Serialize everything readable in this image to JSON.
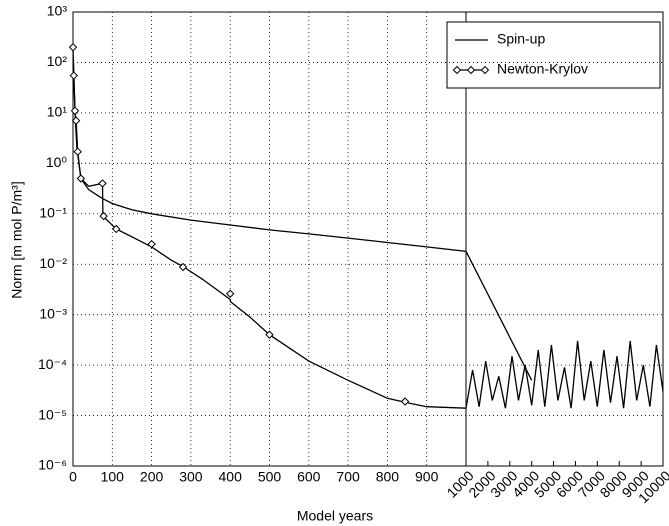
{
  "chart_data": {
    "type": "line",
    "x_label": "Model years",
    "y_label": "Norm [m mol P/m³]",
    "log_y": true,
    "grid": true,
    "legend": "upper right",
    "xlim": [
      0,
      1000
    ],
    "x2lim": [
      1000,
      10000
    ],
    "xticks": [
      0,
      100,
      200,
      300,
      400,
      500,
      600,
      700,
      800,
      900
    ],
    "x2ticks": [
      1000,
      2000,
      3000,
      4000,
      5000,
      6000,
      7000,
      8000,
      9000,
      10000
    ],
    "ylim": [
      1e-06,
      1000
    ],
    "yticks": [
      {
        "value": 1e-06,
        "label": "10⁻⁶"
      },
      {
        "value": 1e-05,
        "label": "10⁻⁵"
      },
      {
        "value": 0.0001,
        "label": "10⁻⁴"
      },
      {
        "value": 0.001,
        "label": "10⁻³"
      },
      {
        "value": 0.01,
        "label": "10⁻²"
      },
      {
        "value": 0.1,
        "label": "10⁻¹"
      },
      {
        "value": 1,
        "label": "10⁰"
      },
      {
        "value": 10,
        "label": "10¹"
      },
      {
        "value": 100,
        "label": "10²"
      },
      {
        "value": 1000,
        "label": "10³"
      }
    ],
    "series": [
      {
        "name": "Spin-up",
        "color": "#000000",
        "x": [
          1,
          5,
          10,
          20,
          40,
          75,
          100,
          150,
          200,
          300,
          400,
          500,
          600,
          700,
          800,
          900,
          1000,
          4000
        ],
        "values": [
          100,
          10,
          2,
          0.5,
          0.3,
          0.2,
          0.16,
          0.12,
          0.1,
          0.075,
          0.06,
          0.048,
          0.04,
          0.033,
          0.027,
          0.022,
          0.018,
          5e-05
        ]
      },
      {
        "name": "Newton-Krylov",
        "color": "#000000",
        "x": [
          0,
          2,
          5,
          8,
          12,
          20,
          40,
          75,
          76,
          110,
          150,
          200,
          250,
          280,
          330,
          400,
          401,
          450,
          500,
          600,
          700,
          800,
          850,
          900,
          1000,
          1300,
          1600,
          1900,
          2200,
          2500,
          2800,
          3100,
          3400,
          3700,
          4000,
          4300,
          4600,
          4900,
          5200,
          5500,
          5800,
          6100,
          6400,
          6700,
          7000,
          7300,
          7600,
          7900,
          8200,
          8500,
          8800,
          9100,
          9400,
          9700,
          10000
        ],
        "values": [
          200,
          55,
          11,
          7,
          1.7,
          0.5,
          0.35,
          0.4,
          0.09,
          0.05,
          0.035,
          0.022,
          0.012,
          0.009,
          0.005,
          0.002,
          0.0018,
          0.0009,
          0.0004,
          0.00012,
          5e-05,
          2.2e-05,
          1.8e-05,
          1.5e-05,
          1.4e-05,
          8e-05,
          1.5e-05,
          0.00012,
          2e-05,
          6e-05,
          1.4e-05,
          0.00015,
          2e-05,
          0.0001,
          1.6e-05,
          0.0002,
          1.5e-05,
          0.00025,
          2e-05,
          9e-05,
          1.4e-05,
          0.0003,
          2e-05,
          0.00012,
          1.5e-05,
          0.0002,
          1.8e-05,
          0.00015,
          1.4e-05,
          0.0003,
          2e-05,
          0.0001,
          1.5e-05,
          0.00025,
          3e-05
        ],
        "markers": {
          "x": [
            0,
            2,
            5,
            8,
            12,
            20,
            75,
            78,
            110,
            200,
            280,
            400,
            500,
            845
          ],
          "values": [
            200,
            55,
            11,
            7,
            1.7,
            0.5,
            0.4,
            0.09,
            0.05,
            0.025,
            0.0088,
            0.0026,
            0.0004,
            1.9e-05
          ]
        }
      }
    ]
  }
}
